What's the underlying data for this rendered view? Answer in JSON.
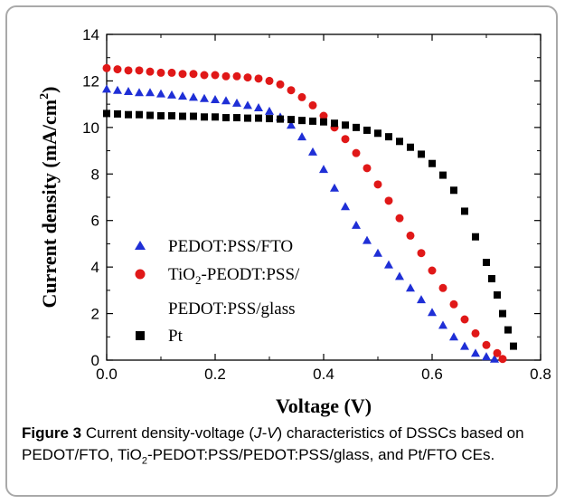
{
  "chart_data": {
    "type": "scatter",
    "xlabel": "Voltage (V)",
    "ylabel": "Current density (mA/cm²)",
    "xlim": [
      0.0,
      0.8
    ],
    "ylim": [
      0,
      14
    ],
    "xticks": [
      0.0,
      0.2,
      0.4,
      0.6,
      0.8
    ],
    "yticks": [
      0,
      2,
      4,
      6,
      8,
      10,
      12,
      14
    ],
    "xtick_labels": [
      "0.0",
      "0.2",
      "0.4",
      "0.6",
      "0.8"
    ],
    "ytick_labels": [
      "0",
      "2",
      "4",
      "6",
      "8",
      "10",
      "12",
      "14"
    ],
    "grid": false,
    "legend_position": "lower-left",
    "series": [
      {
        "name": "PEDOT:PSS/FTO",
        "marker": "triangle",
        "color": "#1f2fd6",
        "x": [
          0.0,
          0.02,
          0.04,
          0.06,
          0.08,
          0.1,
          0.12,
          0.14,
          0.16,
          0.18,
          0.2,
          0.22,
          0.24,
          0.26,
          0.28,
          0.3,
          0.32,
          0.34,
          0.36,
          0.38,
          0.4,
          0.42,
          0.44,
          0.46,
          0.48,
          0.5,
          0.52,
          0.54,
          0.56,
          0.58,
          0.6,
          0.62,
          0.64,
          0.66,
          0.68,
          0.7,
          0.715
        ],
        "y": [
          11.65,
          11.6,
          11.55,
          11.5,
          11.5,
          11.45,
          11.4,
          11.35,
          11.3,
          11.25,
          11.2,
          11.15,
          11.05,
          10.95,
          10.85,
          10.7,
          10.45,
          10.1,
          9.6,
          8.95,
          8.2,
          7.4,
          6.6,
          5.8,
          5.15,
          4.6,
          4.1,
          3.6,
          3.1,
          2.6,
          2.05,
          1.5,
          1.0,
          0.6,
          0.3,
          0.15,
          0.05
        ]
      },
      {
        "name": "TiO₂-PEODT:PSS/PEDOT:PSS/glass",
        "marker": "circle",
        "color": "#e01818",
        "x": [
          0.0,
          0.02,
          0.04,
          0.06,
          0.08,
          0.1,
          0.12,
          0.14,
          0.16,
          0.18,
          0.2,
          0.22,
          0.24,
          0.26,
          0.28,
          0.3,
          0.32,
          0.34,
          0.36,
          0.38,
          0.4,
          0.42,
          0.44,
          0.46,
          0.48,
          0.5,
          0.52,
          0.54,
          0.56,
          0.58,
          0.6,
          0.62,
          0.64,
          0.66,
          0.68,
          0.7,
          0.72,
          0.73
        ],
        "y": [
          12.55,
          12.5,
          12.45,
          12.45,
          12.4,
          12.35,
          12.35,
          12.3,
          12.3,
          12.25,
          12.25,
          12.2,
          12.2,
          12.15,
          12.1,
          12.0,
          11.85,
          11.6,
          11.3,
          10.95,
          10.5,
          10.0,
          9.5,
          8.9,
          8.25,
          7.55,
          6.85,
          6.1,
          5.35,
          4.6,
          3.85,
          3.1,
          2.4,
          1.75,
          1.15,
          0.65,
          0.3,
          0.05
        ]
      },
      {
        "name": "Pt",
        "marker": "square",
        "color": "#000000",
        "x": [
          0.0,
          0.02,
          0.04,
          0.06,
          0.08,
          0.1,
          0.12,
          0.14,
          0.16,
          0.18,
          0.2,
          0.22,
          0.24,
          0.26,
          0.28,
          0.3,
          0.32,
          0.34,
          0.36,
          0.38,
          0.4,
          0.42,
          0.44,
          0.46,
          0.48,
          0.5,
          0.52,
          0.54,
          0.56,
          0.58,
          0.6,
          0.62,
          0.64,
          0.66,
          0.68,
          0.7,
          0.71,
          0.72,
          0.73,
          0.74,
          0.75
        ],
        "y": [
          10.6,
          10.58,
          10.55,
          10.55,
          10.52,
          10.5,
          10.5,
          10.48,
          10.48,
          10.45,
          10.45,
          10.42,
          10.42,
          10.4,
          10.4,
          10.38,
          10.36,
          10.34,
          10.3,
          10.27,
          10.24,
          10.18,
          10.1,
          10.0,
          9.88,
          9.75,
          9.6,
          9.4,
          9.15,
          8.85,
          8.45,
          7.95,
          7.3,
          6.4,
          5.3,
          4.2,
          3.5,
          2.8,
          2.0,
          1.3,
          0.6
        ]
      }
    ]
  },
  "legend": {
    "item1": "PEDOT:PSS/FTO",
    "item2_prefix": "TiO",
    "item2_sub": "2",
    "item2_suffix": "-PEODT:PSS/",
    "item2_line2": "PEDOT:PSS/glass",
    "item3": "Pt"
  },
  "axes": {
    "xlabel": "Voltage (V)",
    "ylabel_main": "Current density (mA/cm",
    "ylabel_sup": "2",
    "ylabel_end": ")"
  },
  "caption": {
    "label": "Figure 3",
    "text_a": " Current density-voltage (",
    "italic": "J-V",
    "text_b": ") characteristics of DSSCs based on PEDOT/FTO, TiO",
    "sub": "2",
    "text_c": "-PEDOT:PSS/PEDOT:PSS/glass, and Pt/FTO CEs."
  }
}
